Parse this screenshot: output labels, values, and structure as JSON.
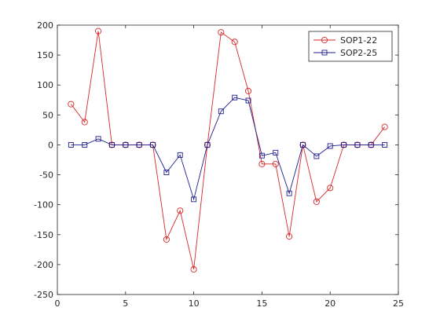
{
  "chart_data": {
    "type": "line",
    "title": "",
    "xlabel": "",
    "ylabel": "",
    "xlim": [
      0,
      25
    ],
    "ylim": [
      -250,
      200
    ],
    "xticks": [
      0,
      5,
      10,
      15,
      20,
      25
    ],
    "yticks": [
      -250,
      -200,
      -150,
      -100,
      -50,
      0,
      50,
      100,
      150,
      200
    ],
    "grid": false,
    "legend_position": "top-right",
    "x": [
      1,
      2,
      3,
      4,
      5,
      6,
      7,
      8,
      9,
      10,
      11,
      12,
      13,
      14,
      15,
      16,
      17,
      18,
      19,
      20,
      21,
      22,
      23,
      24
    ],
    "series": [
      {
        "name": "SOP1-22",
        "color": "#d62728",
        "marker": "circle",
        "values": [
          68,
          38,
          190,
          0,
          0,
          0,
          0,
          -158,
          -110,
          -208,
          0,
          188,
          172,
          90,
          -32,
          -32,
          -153,
          0,
          -95,
          -72,
          0,
          0,
          0,
          30
        ]
      },
      {
        "name": "SOP2-25",
        "color": "#1f1f8f",
        "marker": "square",
        "values": [
          0,
          0,
          10,
          0,
          0,
          0,
          0,
          -46,
          -17,
          -91,
          0,
          56,
          79,
          74,
          -18,
          -13,
          -81,
          0,
          -19,
          -2,
          0,
          0,
          0,
          0
        ]
      }
    ]
  }
}
